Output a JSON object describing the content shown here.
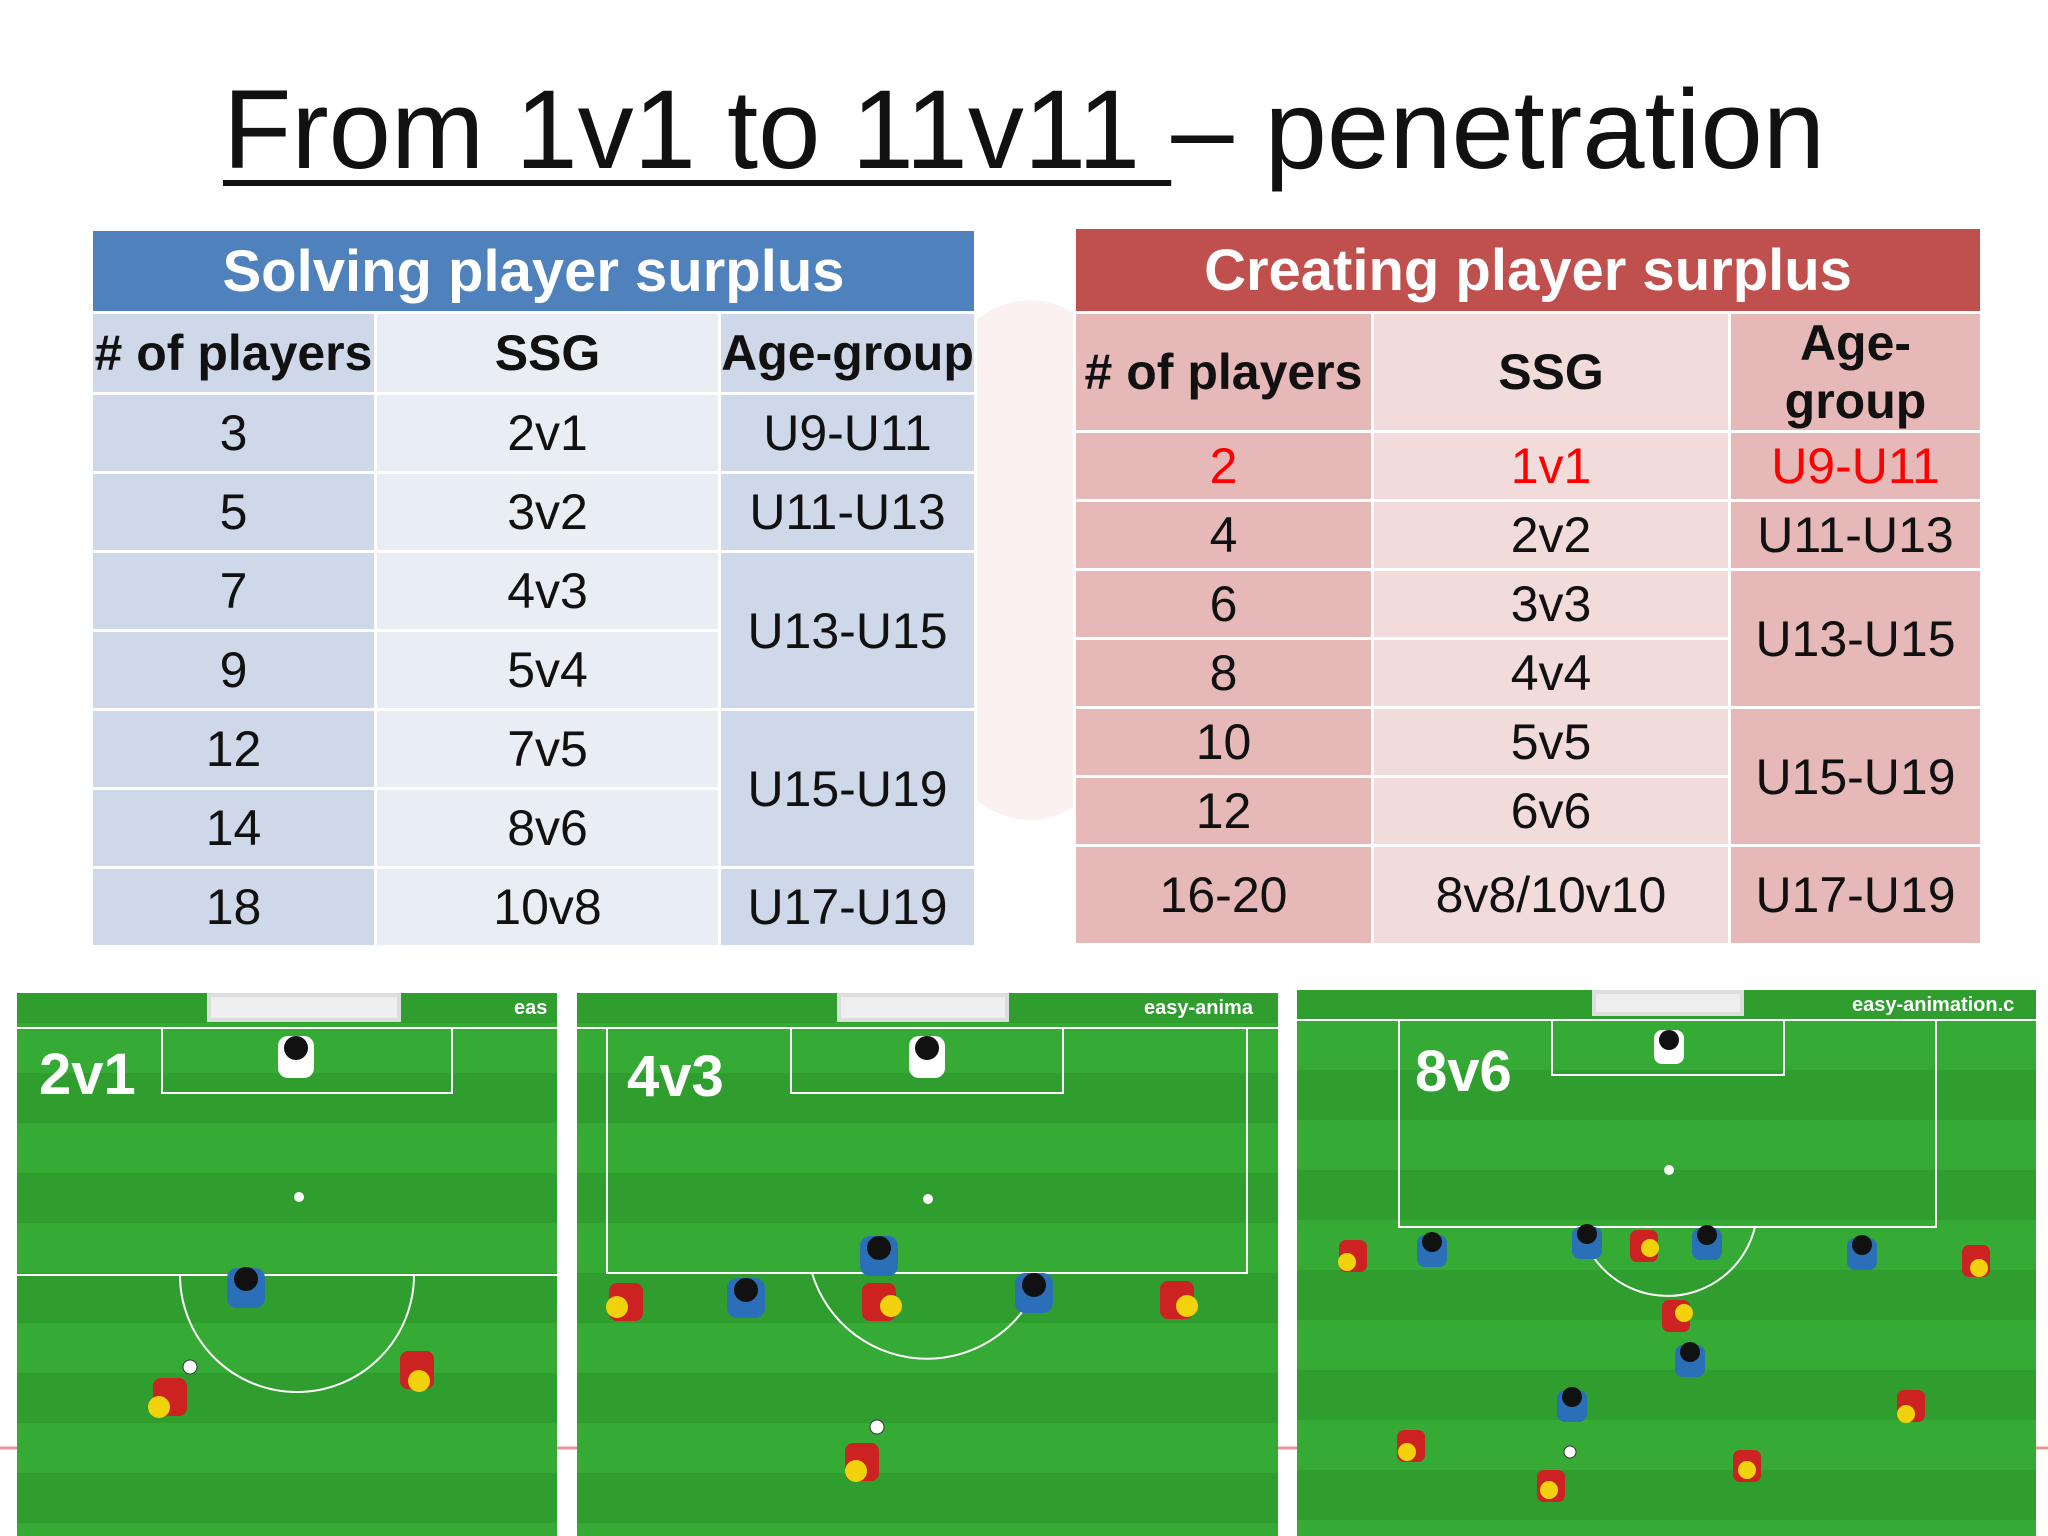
{
  "slide": {
    "title_underlined": "From 1v1 to 11v11 ",
    "title_rest": "– penetration"
  },
  "colors": {
    "blue_header": "#4f81bd",
    "red_header": "#c0504d",
    "highlight_red": "#ff0000",
    "pitch_green": "#2f9e2f"
  },
  "left_table": {
    "title": "Solving player surplus",
    "columns": [
      "# of players",
      "SSG",
      "Age-group"
    ],
    "rows": [
      {
        "players": "3",
        "ssg": "2v1"
      },
      {
        "players": "5",
        "ssg": "3v2"
      },
      {
        "players": "7",
        "ssg": "4v3"
      },
      {
        "players": "9",
        "ssg": "5v4"
      },
      {
        "players": "12",
        "ssg": "7v5"
      },
      {
        "players": "14",
        "ssg": "8v6"
      },
      {
        "players": "18",
        "ssg": "10v8"
      }
    ],
    "age_groups": [
      "U9-U11",
      "U11-U13",
      "U13-U15",
      "U15-U19",
      "U17-U19"
    ]
  },
  "right_table": {
    "title": "Creating player surplus",
    "columns": [
      "# of players",
      "SSG",
      "Age-group"
    ],
    "rows": [
      {
        "players": "2",
        "ssg": "1v1"
      },
      {
        "players": "4",
        "ssg": "2v2"
      },
      {
        "players": "6",
        "ssg": "3v3"
      },
      {
        "players": "8",
        "ssg": "4v4"
      },
      {
        "players": "10",
        "ssg": "5v5"
      },
      {
        "players": "12",
        "ssg": "6v6"
      },
      {
        "players": "16-20",
        "ssg": "8v8/10v10"
      }
    ],
    "age_groups": [
      "U9-U11",
      "U11-U13",
      "U13-U15",
      "U15-U19",
      "U17-U19"
    ]
  },
  "panels": [
    {
      "label": "2v1",
      "watermark": "eas"
    },
    {
      "label": "4v3",
      "watermark": "easy-anima"
    },
    {
      "label": "8v6",
      "watermark": "easy-animation.c"
    }
  ]
}
